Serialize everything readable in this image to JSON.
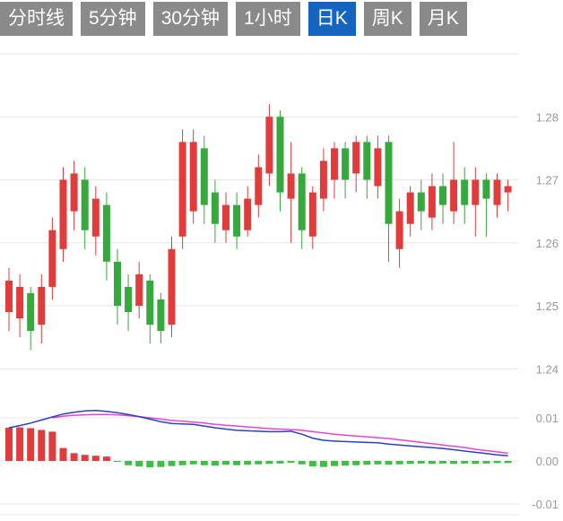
{
  "tabbar": {
    "active_index": 4,
    "tabs": [
      {
        "label": "分时线"
      },
      {
        "label": "5分钟"
      },
      {
        "label": "30分钟"
      },
      {
        "label": "1小时"
      },
      {
        "label": "日K"
      },
      {
        "label": "周K"
      },
      {
        "label": "月K"
      }
    ]
  },
  "colors": {
    "background": "#ffffff",
    "tab_bg": "#8a8a8a",
    "tab_active_bg": "#1565c0",
    "tab_text": "#ffffff",
    "up": "#e23b3b",
    "down": "#35a93c",
    "macd_bar_up": "#e23b3b",
    "macd_bar_down": "#3dbf44",
    "dif_line": "#2a3fc1",
    "dea_line": "#e843d7",
    "grid": "#e7e7e7",
    "axis_label": "#999999"
  },
  "chart_data": [
    {
      "type": "candlestick",
      "title": "",
      "xlabel": "",
      "ylabel": "",
      "grid": true,
      "legend": false,
      "ylim": [
        1.238,
        1.292
      ],
      "yticks": [
        1.28,
        1.27,
        1.26,
        1.25,
        1.24
      ],
      "grid_levels": [
        1.29,
        1.28,
        1.27,
        1.26,
        1.25,
        1.24
      ],
      "ohlc_format": [
        "open",
        "high",
        "low",
        "close"
      ],
      "ohlc": [
        [
          1.249,
          1.256,
          1.246,
          1.254
        ],
        [
          1.248,
          1.255,
          1.245,
          1.253
        ],
        [
          1.252,
          1.253,
          1.243,
          1.246
        ],
        [
          1.247,
          1.255,
          1.244,
          1.253
        ],
        [
          1.253,
          1.264,
          1.251,
          1.262
        ],
        [
          1.259,
          1.272,
          1.257,
          1.27
        ],
        [
          1.265,
          1.273,
          1.262,
          1.271
        ],
        [
          1.27,
          1.272,
          1.259,
          1.262
        ],
        [
          1.261,
          1.269,
          1.258,
          1.267
        ],
        [
          1.266,
          1.268,
          1.254,
          1.257
        ],
        [
          1.257,
          1.259,
          1.247,
          1.25
        ],
        [
          1.253,
          1.255,
          1.246,
          1.249
        ],
        [
          1.25,
          1.257,
          1.248,
          1.255
        ],
        [
          1.254,
          1.255,
          1.244,
          1.247
        ],
        [
          1.251,
          1.252,
          1.244,
          1.246
        ],
        [
          1.247,
          1.261,
          1.245,
          1.259
        ],
        [
          1.261,
          1.278,
          1.259,
          1.276
        ],
        [
          1.265,
          1.278,
          1.263,
          1.276
        ],
        [
          1.275,
          1.277,
          1.263,
          1.266
        ],
        [
          1.268,
          1.27,
          1.26,
          1.263
        ],
        [
          1.262,
          1.268,
          1.26,
          1.266
        ],
        [
          1.266,
          1.268,
          1.259,
          1.261
        ],
        [
          1.262,
          1.269,
          1.261,
          1.267
        ],
        [
          1.266,
          1.274,
          1.264,
          1.272
        ],
        [
          1.271,
          1.282,
          1.269,
          1.28
        ],
        [
          1.28,
          1.281,
          1.265,
          1.268
        ],
        [
          1.267,
          1.276,
          1.26,
          1.271
        ],
        [
          1.271,
          1.272,
          1.259,
          1.262
        ],
        [
          1.261,
          1.269,
          1.259,
          1.268
        ],
        [
          1.267,
          1.275,
          1.265,
          1.273
        ],
        [
          1.27,
          1.276,
          1.267,
          1.275
        ],
        [
          1.275,
          1.276,
          1.267,
          1.27
        ],
        [
          1.271,
          1.277,
          1.268,
          1.276
        ],
        [
          1.276,
          1.277,
          1.267,
          1.27
        ],
        [
          1.269,
          1.277,
          1.267,
          1.275
        ],
        [
          1.276,
          1.277,
          1.257,
          1.263
        ],
        [
          1.259,
          1.267,
          1.256,
          1.265
        ],
        [
          1.263,
          1.269,
          1.261,
          1.268
        ],
        [
          1.268,
          1.27,
          1.262,
          1.265
        ],
        [
          1.264,
          1.271,
          1.262,
          1.269
        ],
        [
          1.269,
          1.271,
          1.263,
          1.266
        ],
        [
          1.265,
          1.276,
          1.263,
          1.27
        ],
        [
          1.27,
          1.272,
          1.263,
          1.266
        ],
        [
          1.266,
          1.272,
          1.261,
          1.27
        ],
        [
          1.27,
          1.271,
          1.261,
          1.267
        ],
        [
          1.266,
          1.271,
          1.264,
          1.27
        ],
        [
          1.268,
          1.27,
          1.265,
          1.269
        ]
      ]
    },
    {
      "type": "macd",
      "title": "",
      "grid": true,
      "ylim": [
        -0.013,
        0.015
      ],
      "yticks": [
        0.01,
        0,
        -0.01
      ],
      "histogram": [
        0.0077,
        0.0078,
        0.0076,
        0.0072,
        0.0068,
        0.003,
        0.0018,
        0.0014,
        0.0012,
        0.001,
        -0.0002,
        -0.001,
        -0.0013,
        -0.0015,
        -0.0014,
        -0.0012,
        -0.001,
        -0.0008,
        -0.001,
        -0.0011,
        -0.0009,
        -0.001,
        -0.0009,
        -0.0008,
        -0.0007,
        -0.0006,
        -0.0004,
        -0.0008,
        -0.0013,
        -0.0014,
        -0.0012,
        -0.0011,
        -0.001,
        -0.0009,
        -0.0008,
        -0.0009,
        -0.0008,
        -0.0007,
        -0.0006,
        -0.0007,
        -0.0006,
        -0.0007,
        -0.0006,
        -0.0007,
        -0.0006,
        -0.0005,
        -0.0005
      ],
      "dif": [
        0.0077,
        0.0082,
        0.0088,
        0.0095,
        0.0102,
        0.0109,
        0.0113,
        0.0116,
        0.0117,
        0.0115,
        0.0112,
        0.0108,
        0.0103,
        0.0097,
        0.0091,
        0.0087,
        0.0086,
        0.0085,
        0.0081,
        0.0077,
        0.0074,
        0.0071,
        0.007,
        0.0069,
        0.0068,
        0.0068,
        0.0069,
        0.0062,
        0.0053,
        0.0048,
        0.0046,
        0.0045,
        0.0044,
        0.0043,
        0.0042,
        0.0039,
        0.0037,
        0.0035,
        0.0033,
        0.0031,
        0.0029,
        0.0026,
        0.0023,
        0.002,
        0.0017,
        0.0014,
        0.0012
      ],
      "dea": [
        null,
        null,
        null,
        null,
        0.01,
        0.0104,
        0.0106,
        0.0107,
        0.0108,
        0.0108,
        0.0107,
        0.0105,
        0.0103,
        0.01,
        0.0097,
        0.0094,
        0.0092,
        0.009,
        0.0088,
        0.0085,
        0.0083,
        0.0081,
        0.0079,
        0.0077,
        0.0075,
        0.0074,
        0.0073,
        0.0071,
        0.0068,
        0.0065,
        0.0062,
        0.006,
        0.0058,
        0.0056,
        0.0054,
        0.0052,
        0.0049,
        0.0046,
        0.0043,
        0.004,
        0.0037,
        0.0034,
        0.0031,
        0.0027,
        0.0024,
        0.0021,
        0.0018
      ]
    }
  ]
}
